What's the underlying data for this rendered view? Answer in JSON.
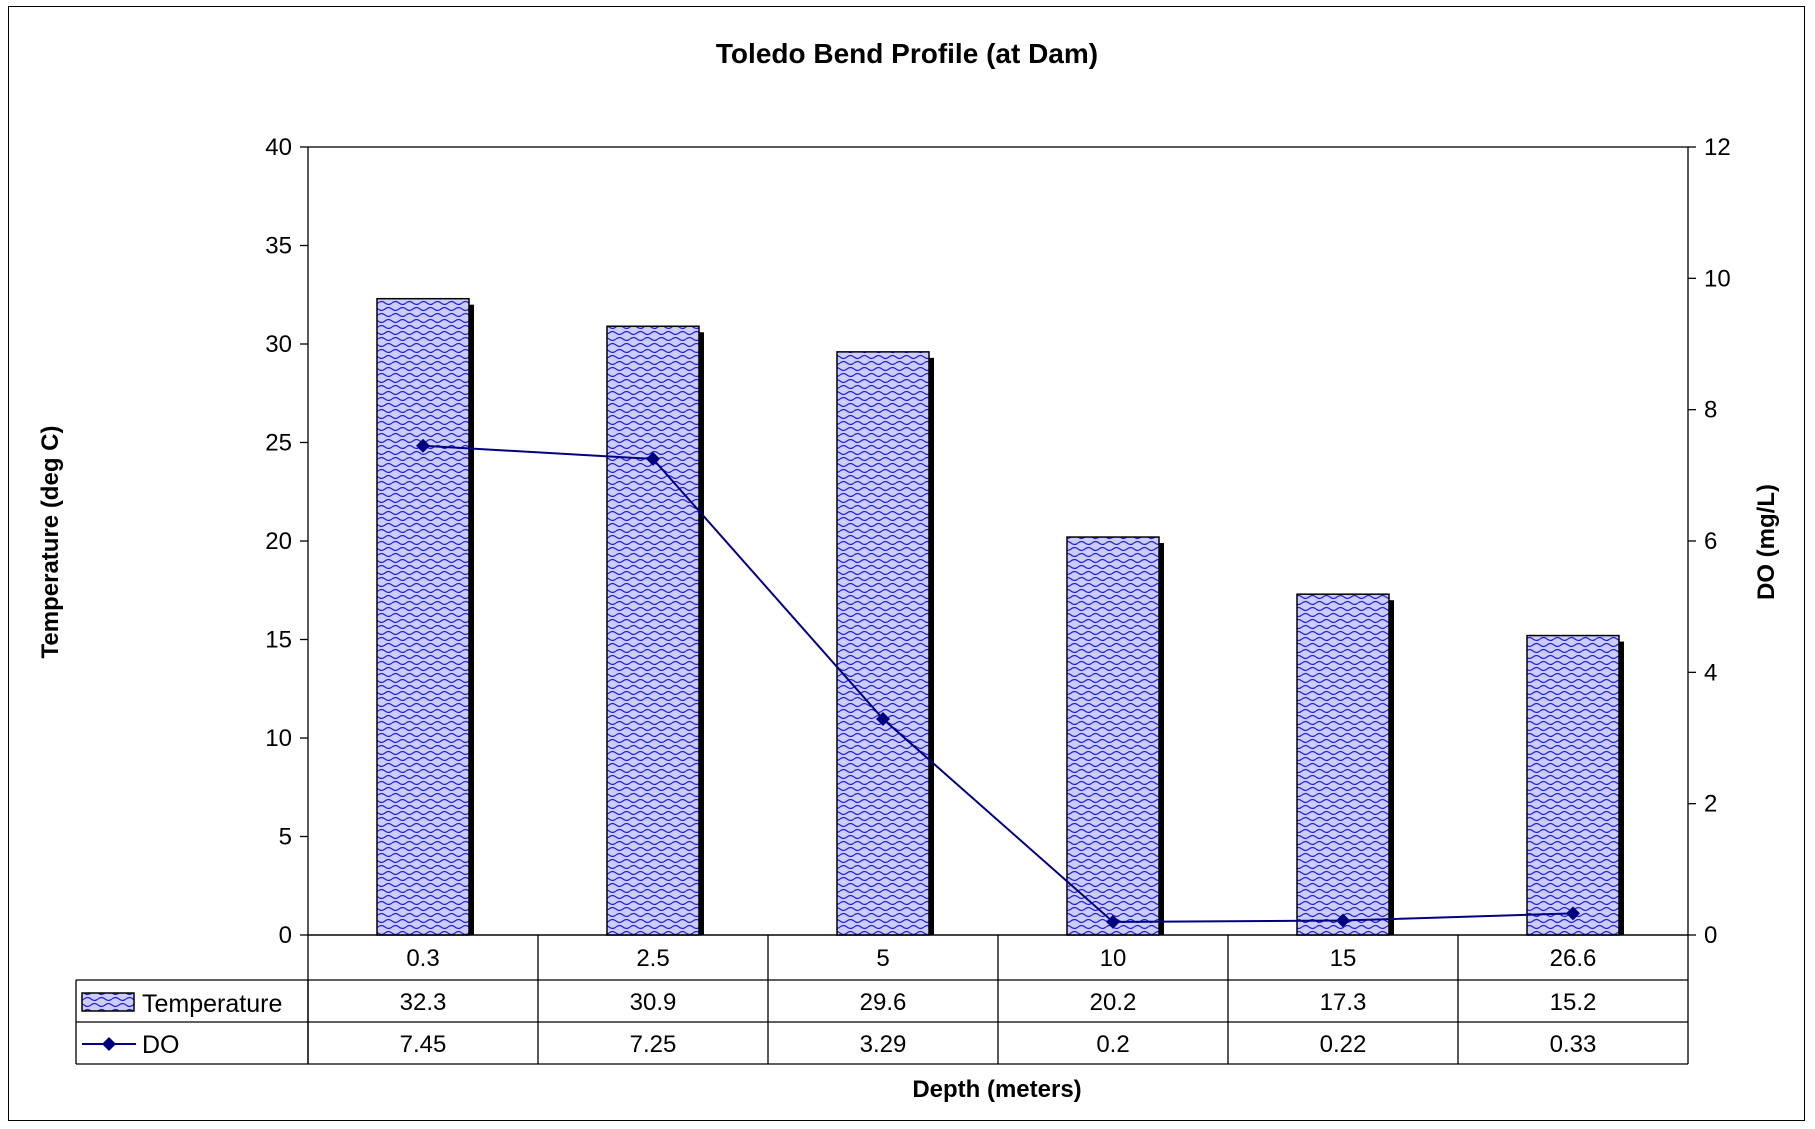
{
  "chart_data": {
    "type": "bar",
    "title": "Toledo Bend Profile (at Dam)",
    "xlabel": "Depth (meters)",
    "ylabel": "Temperature (deg C)",
    "y2label": "DO (mg/L)",
    "categories": [
      "0.3",
      "2.5",
      "5",
      "10",
      "15",
      "26.6"
    ],
    "ylim": [
      0,
      40
    ],
    "yticks": [
      0,
      5,
      10,
      15,
      20,
      25,
      30,
      35,
      40
    ],
    "y2lim": [
      0,
      12
    ],
    "y2ticks": [
      0,
      2,
      4,
      6,
      8,
      10,
      12
    ],
    "grid": false,
    "legend": "data-table",
    "series": [
      {
        "name": "Temperature",
        "kind": "bar",
        "axis": "left",
        "values": [
          32.3,
          30.9,
          29.6,
          20.2,
          17.3,
          15.2
        ],
        "labels": [
          "32.3",
          "30.9",
          "29.6",
          "20.2",
          "17.3",
          "15.2"
        ]
      },
      {
        "name": "DO",
        "kind": "line",
        "axis": "right",
        "values": [
          7.45,
          7.25,
          3.29,
          0.2,
          0.22,
          0.33
        ],
        "labels": [
          "7.45",
          "7.25",
          "3.29",
          "0.2",
          "0.22",
          "0.33"
        ]
      }
    ],
    "colors": {
      "bar_fill": "#ccccff",
      "bar_pattern": "#2222cc",
      "bar_shadow": "#000000",
      "line": "#000080"
    }
  }
}
